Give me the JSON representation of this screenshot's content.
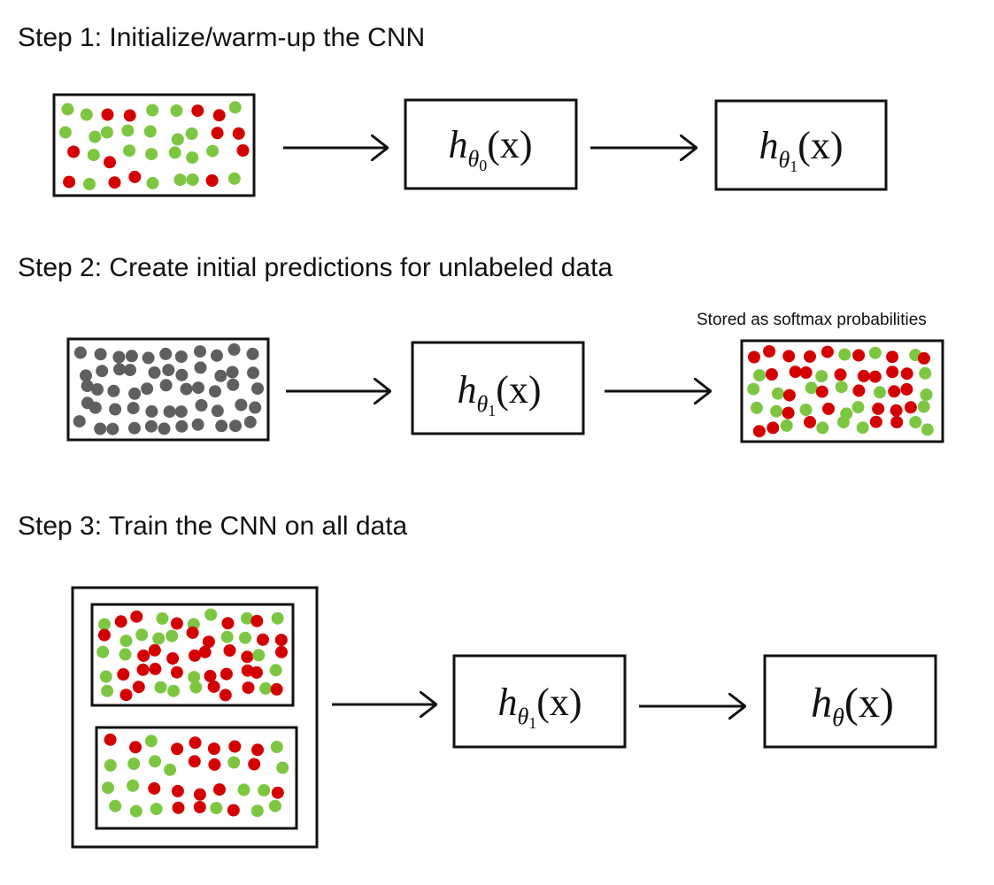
{
  "steps": [
    {
      "title": "Step 1: Initialize/warm-up the CNN",
      "models": [
        {
          "h": "h",
          "sub": "θ",
          "subsub": "0",
          "arg": "(x)"
        },
        {
          "h": "h",
          "sub": "θ",
          "subsub": "1",
          "arg": "(x)"
        }
      ]
    },
    {
      "title": "Step 2: Create initial predictions for unlabeled data",
      "note": "Stored as softmax probabilities",
      "models": [
        {
          "h": "h",
          "sub": "θ",
          "subsub": "1",
          "arg": "(x)"
        }
      ]
    },
    {
      "title": "Step 3: Train the CNN on all data",
      "models": [
        {
          "h": "h",
          "sub": "θ",
          "subsub": "1",
          "arg": "(x)"
        },
        {
          "h": "h",
          "sub": "θ",
          "subsub": "",
          "arg": "(x)"
        }
      ]
    }
  ],
  "colors": {
    "labeled_red": "#d40000",
    "labeled_green": "#7dc642",
    "unlabeled_gray": "#5f5f5f",
    "stroke": "#111111"
  }
}
